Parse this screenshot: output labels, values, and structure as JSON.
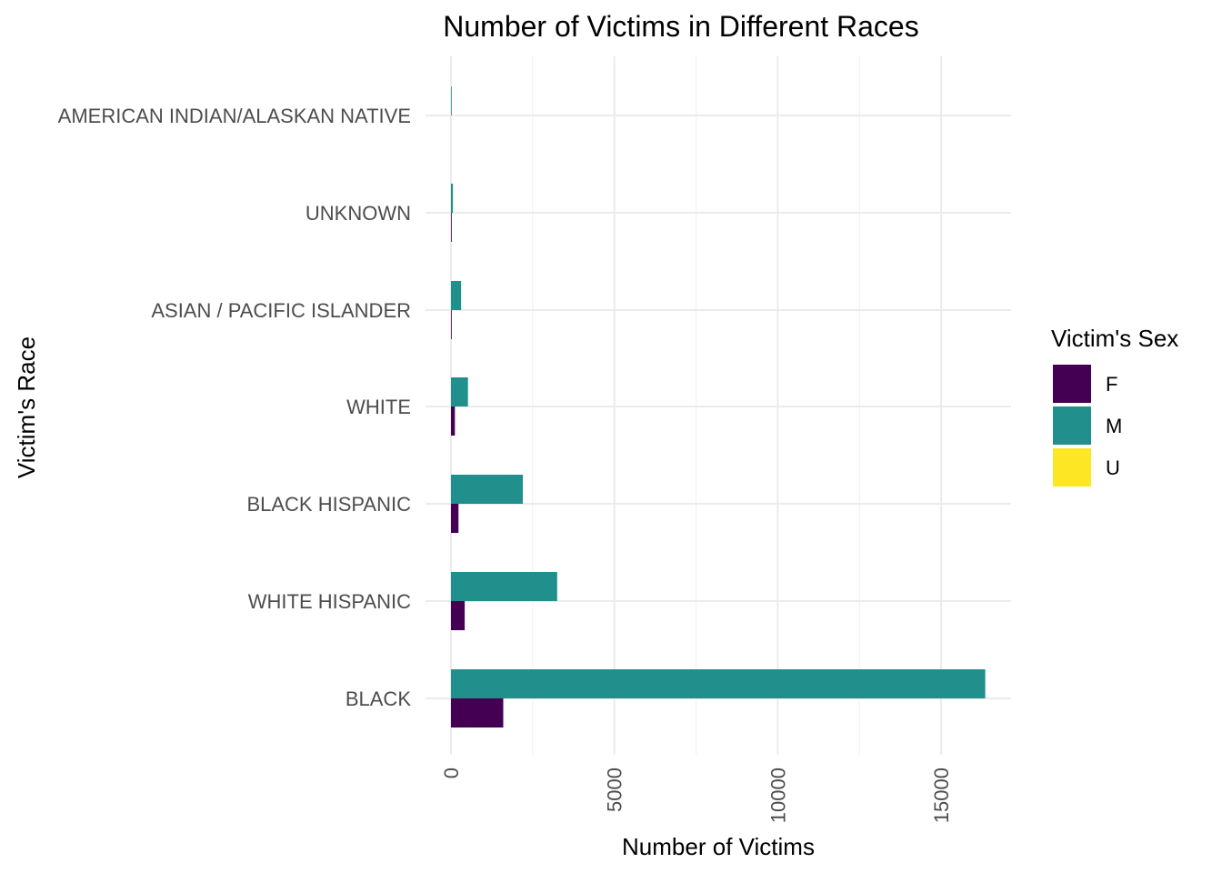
{
  "chart_data": {
    "type": "bar",
    "orientation": "horizontal",
    "title": "Number of Victims in Different Races",
    "xlabel": "Number of Victims",
    "ylabel": "Victim's Race",
    "categories": [
      "BLACK",
      "WHITE HISPANIC",
      "BLACK HISPANIC",
      "WHITE",
      "ASIAN / PACIFIC ISLANDER",
      "UNKNOWN",
      "AMERICAN INDIAN/ALASKAN NATIVE"
    ],
    "series": [
      {
        "name": "F",
        "color": "#440154",
        "values": [
          1600,
          420,
          230,
          120,
          20,
          5,
          0
        ]
      },
      {
        "name": "M",
        "color": "#21908C",
        "values": [
          16350,
          3250,
          2200,
          520,
          310,
          60,
          10
        ]
      },
      {
        "name": "U",
        "color": "#FDE725",
        "values": [
          0,
          0,
          0,
          0,
          0,
          0,
          0
        ]
      }
    ],
    "xticks": [
      0,
      5000,
      10000,
      15000
    ],
    "xtick_labels": [
      "0",
      "5000",
      "10000",
      "15000"
    ],
    "xlim": [
      0,
      17150
    ],
    "legend": {
      "title": "Victim's Sex",
      "position": "right"
    },
    "grid": true
  }
}
